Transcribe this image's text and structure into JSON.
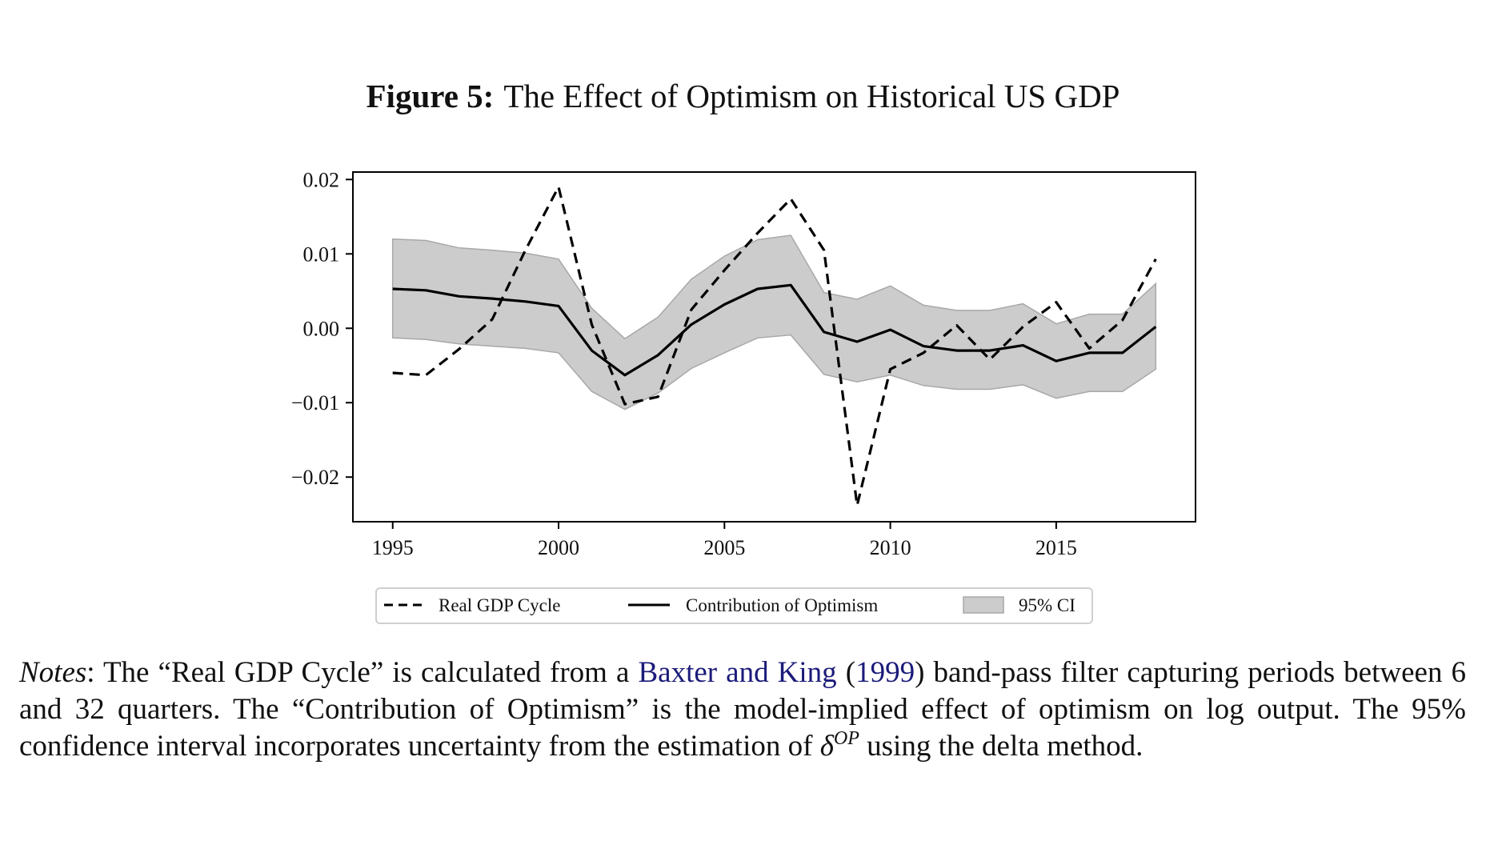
{
  "figure": {
    "label": "Figure 5:",
    "title": "The Effect of Optimism on Historical US GDP"
  },
  "chart_data": {
    "type": "line",
    "x": [
      1995,
      1996,
      1997,
      1998,
      1999,
      2000,
      2001,
      2002,
      2003,
      2004,
      2005,
      2006,
      2007,
      2008,
      2009,
      2010,
      2011,
      2012,
      2013,
      2014,
      2015,
      2016,
      2017,
      2018
    ],
    "series": [
      {
        "name": "Real GDP Cycle",
        "style": "dashed",
        "color": "#000000",
        "values": [
          -0.006,
          -0.0063,
          -0.0028,
          0.0012,
          0.0105,
          0.019,
          0.0005,
          -0.0102,
          -0.0092,
          0.0025,
          0.0078,
          0.0128,
          0.0174,
          0.0105,
          -0.0238,
          -0.0055,
          -0.0033,
          0.0004,
          -0.0042,
          0.0002,
          0.0035,
          -0.0027,
          0.0011,
          0.0093
        ]
      },
      {
        "name": "Contribution of Optimism",
        "style": "solid",
        "color": "#000000",
        "values": [
          0.0053,
          0.0051,
          0.0043,
          0.004,
          0.0036,
          0.003,
          -0.003,
          -0.0063,
          -0.0036,
          0.0005,
          0.0032,
          0.0053,
          0.0058,
          -0.0005,
          -0.0018,
          -0.0002,
          -0.0024,
          -0.003,
          -0.003,
          -0.0023,
          -0.0044,
          -0.0033,
          -0.0033,
          0.0002
        ]
      }
    ],
    "band": {
      "name": "95% CI",
      "color": "#cccccc",
      "edge_color": "#a8a8a8",
      "upper": [
        0.012,
        0.0118,
        0.0108,
        0.0105,
        0.0101,
        0.0093,
        0.0027,
        -0.0014,
        0.0015,
        0.0066,
        0.0097,
        0.0119,
        0.0125,
        0.0048,
        0.0039,
        0.0057,
        0.0031,
        0.0024,
        0.0024,
        0.0033,
        0.0006,
        0.0019,
        0.0019,
        0.006
      ],
      "lower": [
        -0.0013,
        -0.0015,
        -0.0021,
        -0.0024,
        -0.0027,
        -0.0033,
        -0.0085,
        -0.0109,
        -0.0087,
        -0.0054,
        -0.0033,
        -0.0013,
        -0.0009,
        -0.0062,
        -0.0072,
        -0.0063,
        -0.0077,
        -0.0082,
        -0.0082,
        -0.0076,
        -0.0094,
        -0.0085,
        -0.0085,
        -0.0055
      ]
    },
    "xlim": [
      1993.8,
      2019.2
    ],
    "ylim": [
      -0.026,
      0.021
    ],
    "xticks": [
      1995,
      2000,
      2005,
      2010,
      2015
    ],
    "xtick_labels": [
      "1995",
      "2000",
      "2005",
      "2010",
      "2015"
    ],
    "yticks": [
      0.02,
      0.01,
      0.0,
      -0.01,
      -0.02
    ],
    "ytick_labels": [
      "0.02",
      "0.01",
      "0.00",
      "−0.01",
      "−0.02"
    ],
    "xlabel": "",
    "ylabel": "",
    "grid": false,
    "legend_position": "bottom-center-outside",
    "legend": [
      "Real GDP Cycle",
      "Contribution of Optimism",
      "95% CI"
    ]
  },
  "notes": {
    "label": "Notes",
    "colon": ":",
    "text_before_cite": " The “Real GDP Cycle” is calculated from a ",
    "cite_authors": "Baxter and King",
    "cite_open_paren": " (",
    "cite_year": "1999",
    "cite_close_paren": ")",
    "text_after_cite": " band-pass filter capturing periods between 6 and 32 quarters. The “Contribution of Optimism” is the model-implied effect of optimism on log output. The 95% confidence interval incorporates uncertainty from the estimation of ",
    "delta_symbol": "δ",
    "delta_superscript": "OP",
    "text_end": " using the delta method."
  }
}
